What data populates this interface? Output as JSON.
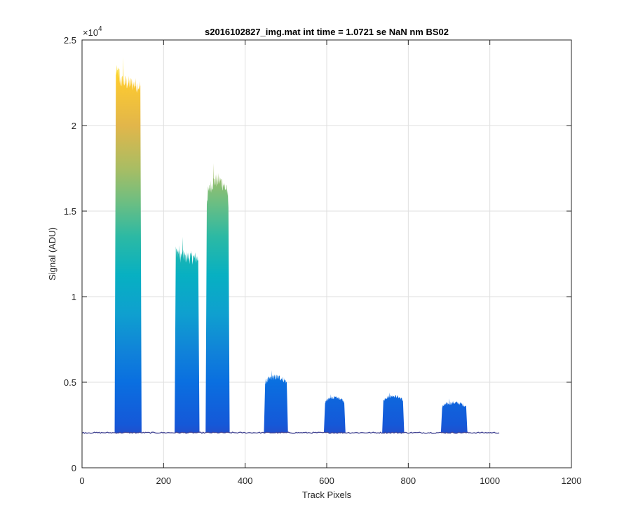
{
  "chart_data": {
    "type": "area",
    "title": "s2016102827_img.mat int time = 1.0721 se  NaN nm BS02",
    "xlabel": "Track Pixels",
    "ylabel": "Signal (ADU)",
    "xlim": [
      0,
      1200
    ],
    "ylim": [
      0,
      25000
    ],
    "xticks": [
      0,
      200,
      400,
      600,
      800,
      1000,
      1200
    ],
    "xtick_labels": [
      "0",
      "200",
      "400",
      "600",
      "800",
      "1000",
      "1200"
    ],
    "yticks": [
      0,
      5000,
      10000,
      15000,
      20000,
      25000
    ],
    "ytick_labels": [
      "0",
      "0.5",
      "1",
      "1.5",
      "2",
      "2.5"
    ],
    "y_exponent": {
      "base": "×10",
      "power": "4"
    },
    "grid": true,
    "colormap": "parula",
    "baseline": 2050,
    "baseline_xrange": [
      0,
      1023
    ],
    "peaks": [
      {
        "x_start": 80,
        "x_end": 146,
        "plateau": 23000,
        "max": 24000,
        "shape": "flat"
      },
      {
        "x_start": 227,
        "x_end": 288,
        "plateau": 12600,
        "max": 13500,
        "shape": "flat"
      },
      {
        "x_start": 303,
        "x_end": 362,
        "plateau": 16800,
        "max": 17800,
        "shape": "dome"
      },
      {
        "x_start": 446,
        "x_end": 505,
        "plateau": 5300,
        "max": 5700,
        "shape": "dome"
      },
      {
        "x_start": 593,
        "x_end": 646,
        "plateau": 4100,
        "max": 4300,
        "shape": "dome"
      },
      {
        "x_start": 736,
        "x_end": 790,
        "plateau": 4200,
        "max": 4400,
        "shape": "dome"
      },
      {
        "x_start": 880,
        "x_end": 945,
        "plateau": 3800,
        "max": 4050,
        "shape": "dome"
      }
    ],
    "colors": {
      "axis": "#262626",
      "grid": "#dfdfdf",
      "baseline": "#3d3f8f"
    }
  }
}
